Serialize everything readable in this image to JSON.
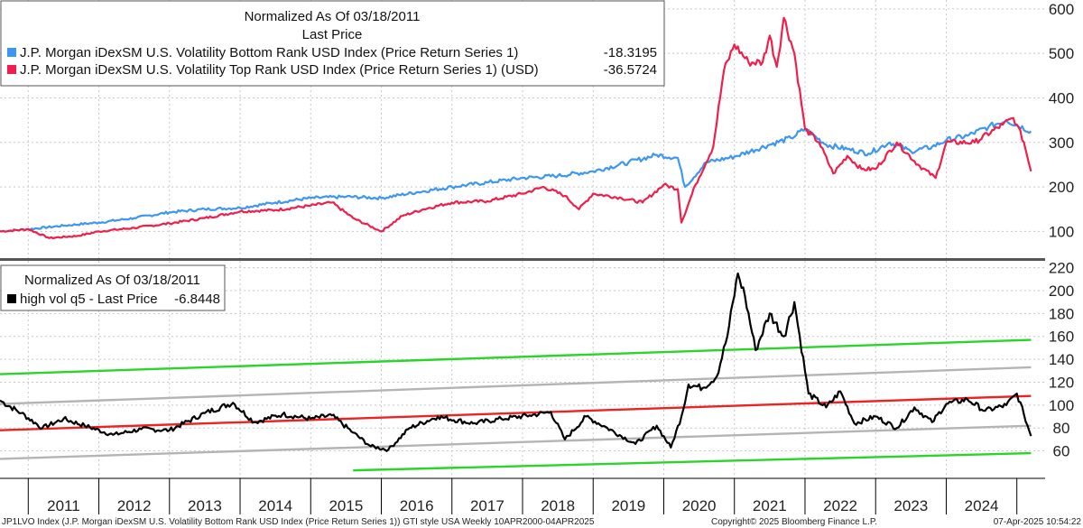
{
  "chart_data": [
    {
      "type": "line",
      "panel": "top",
      "title": "Normalized As Of 03/18/2011",
      "subtitle": "Last Price",
      "ylim": [
        40,
        620
      ],
      "yticks": [
        100,
        200,
        300,
        400,
        500,
        600
      ],
      "grid": true,
      "legend_position": "top-left",
      "series": [
        {
          "name": "J.P. Morgan iDexSM U.S. Volatility Bottom Rank USD Index (Price Return Series 1)",
          "last_value": "-18.3195",
          "color": "#3d97f2",
          "x": [
            2010.6,
            2011.0,
            2011.5,
            2012.0,
            2012.5,
            2013.0,
            2013.5,
            2014.0,
            2014.5,
            2015.0,
            2015.5,
            2016.0,
            2016.5,
            2017.0,
            2017.5,
            2018.0,
            2018.5,
            2019.0,
            2019.5,
            2019.9,
            2020.2,
            2020.3,
            2020.6,
            2021.0,
            2021.5,
            2021.8,
            2022.0,
            2022.3,
            2022.6,
            2022.9,
            2023.2,
            2023.5,
            2023.8,
            2024.0,
            2024.3,
            2024.6,
            2024.85,
            2025.2
          ],
          "y": [
            100,
            105,
            113,
            120,
            130,
            143,
            150,
            153,
            165,
            175,
            178,
            175,
            188,
            200,
            210,
            220,
            225,
            235,
            255,
            272,
            265,
            200,
            255,
            268,
            295,
            310,
            330,
            295,
            285,
            275,
            300,
            280,
            290,
            305,
            315,
            335,
            350,
            325
          ]
        },
        {
          "name": "J.P. Morgan iDexSM U.S. Volatility Top Rank USD Index (Price Return Series 1) (USD)",
          "last_value": "-36.5724",
          "color": "#ef1f4b",
          "x": [
            2010.6,
            2011.0,
            2011.3,
            2011.7,
            2012.0,
            2012.5,
            2013.0,
            2013.5,
            2014.0,
            2014.5,
            2015.0,
            2015.3,
            2015.6,
            2016.0,
            2016.3,
            2016.6,
            2017.0,
            2017.5,
            2018.0,
            2018.3,
            2018.6,
            2018.8,
            2019.0,
            2019.4,
            2019.7,
            2020.0,
            2020.2,
            2020.25,
            2020.45,
            2020.7,
            2020.85,
            2021.0,
            2021.2,
            2021.4,
            2021.5,
            2021.6,
            2021.7,
            2021.85,
            2022.0,
            2022.2,
            2022.4,
            2022.6,
            2022.8,
            2023.0,
            2023.3,
            2023.6,
            2023.85,
            2024.0,
            2024.4,
            2024.8,
            2024.95,
            2025.0,
            2025.1,
            2025.2
          ],
          "y": [
            100,
            105,
            85,
            90,
            100,
            108,
            118,
            130,
            145,
            148,
            158,
            165,
            130,
            100,
            135,
            150,
            165,
            168,
            185,
            200,
            180,
            150,
            185,
            175,
            165,
            205,
            195,
            120,
            205,
            290,
            460,
            520,
            480,
            480,
            540,
            470,
            580,
            500,
            330,
            300,
            230,
            270,
            240,
            240,
            300,
            250,
            220,
            300,
            300,
            340,
            355,
            340,
            300,
            235
          ]
        }
      ]
    },
    {
      "type": "line",
      "panel": "bottom",
      "title": "Normalized As Of 03/18/2011",
      "ylim": [
        36,
        226
      ],
      "yticks": [
        60,
        80,
        100,
        120,
        140,
        160,
        180,
        200,
        220
      ],
      "grid": true,
      "legend_position": "top-left",
      "series": [
        {
          "name": "high vol q5 - Last Price",
          "last_value": "-6.8448",
          "color": "#000000",
          "x": [
            2010.6,
            2010.9,
            2011.2,
            2011.5,
            2011.8,
            2012.2,
            2012.6,
            2013.0,
            2013.5,
            2013.9,
            2014.2,
            2014.6,
            2015.0,
            2015.3,
            2015.6,
            2015.85,
            2016.1,
            2016.4,
            2016.8,
            2017.3,
            2017.7,
            2018.1,
            2018.4,
            2018.6,
            2018.9,
            2019.2,
            2019.6,
            2019.9,
            2020.1,
            2020.25,
            2020.35,
            2020.55,
            2020.75,
            2020.9,
            2021.05,
            2021.15,
            2021.3,
            2021.5,
            2021.7,
            2021.85,
            2022.05,
            2022.3,
            2022.5,
            2022.7,
            2023.0,
            2023.3,
            2023.55,
            2023.8,
            2024.0,
            2024.3,
            2024.55,
            2024.85,
            2025.0,
            2025.1,
            2025.2
          ],
          "y": [
            104,
            93,
            80,
            88,
            82,
            74,
            79,
            78,
            93,
            102,
            85,
            92,
            88,
            91,
            76,
            64,
            61,
            80,
            90,
            84,
            88,
            91,
            94,
            70,
            90,
            80,
            66,
            82,
            63,
            90,
            118,
            115,
            125,
            160,
            215,
            195,
            148,
            180,
            160,
            190,
            110,
            98,
            112,
            84,
            90,
            80,
            98,
            85,
            101,
            105,
            95,
            100,
            110,
            92,
            73
          ]
        }
      ],
      "regression_lines": [
        {
          "name": "upper band 2",
          "color": "#2bd42b",
          "x": [
            2010.6,
            2025.2
          ],
          "y": [
            127,
            157
          ]
        },
        {
          "name": "upper band 1",
          "color": "#b4b4b4",
          "x": [
            2010.6,
            2025.2
          ],
          "y": [
            101,
            133
          ]
        },
        {
          "name": "trend",
          "color": "#ee2222",
          "x": [
            2010.6,
            2025.2
          ],
          "y": [
            78,
            108
          ]
        },
        {
          "name": "lower band 1",
          "color": "#b4b4b4",
          "x": [
            2010.6,
            2025.2
          ],
          "y": [
            53,
            82
          ]
        },
        {
          "name": "lower band 2",
          "color": "#2bd42b",
          "x": [
            2015.6,
            2025.2
          ],
          "y": [
            43,
            58
          ]
        }
      ]
    }
  ],
  "x_axis": {
    "years": [
      "2011",
      "2012",
      "2013",
      "2014",
      "2015",
      "2016",
      "2017",
      "2018",
      "2019",
      "2020",
      "2021",
      "2022",
      "2023",
      "2024"
    ],
    "xlim": [
      2010.6,
      2025.4
    ]
  },
  "footer": {
    "left": "JP1LVO Index (J.P. Morgan iDexSM U.S. Volatility Bottom Rank USD Index (Price Return Series 1)) GTI style USA  Weekly 10APR2000-04APR2025",
    "center": "Copyright© 2025 Bloomberg Finance L.P.",
    "right": "07-Apr-2025 10:54:22"
  },
  "colors": {
    "divider": "#555555",
    "axis": "#000000"
  }
}
